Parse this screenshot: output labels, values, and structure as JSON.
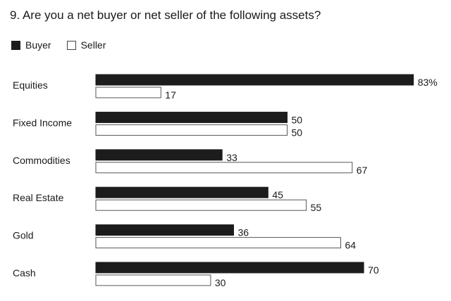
{
  "title": "9. Are you a net buyer or net seller of the following assets?",
  "legend": {
    "buyer": "Buyer",
    "seller": "Seller"
  },
  "colors": {
    "buyer": "#1c1c1c",
    "seller": "#ffffff",
    "outline": "#555555"
  },
  "chart_data": {
    "type": "bar",
    "orientation": "horizontal",
    "title": "9. Are you a net buyer or net seller of the following assets?",
    "categories": [
      "Equities",
      "Fixed Income",
      "Commodities",
      "Real Estate",
      "Gold",
      "Cash"
    ],
    "series": [
      {
        "name": "Buyer",
        "values": [
          83,
          50,
          33,
          45,
          36,
          70
        ]
      },
      {
        "name": "Seller",
        "values": [
          17,
          50,
          67,
          55,
          64,
          30
        ]
      }
    ],
    "value_labels": {
      "Buyer": [
        "83%",
        "50",
        "33",
        "45",
        "36",
        "70"
      ],
      "Seller": [
        "17",
        "50",
        "67",
        "55",
        "64",
        "30"
      ]
    },
    "unit": "%",
    "xlim": [
      0,
      100
    ],
    "grid": false,
    "legend_position": "top-left"
  }
}
